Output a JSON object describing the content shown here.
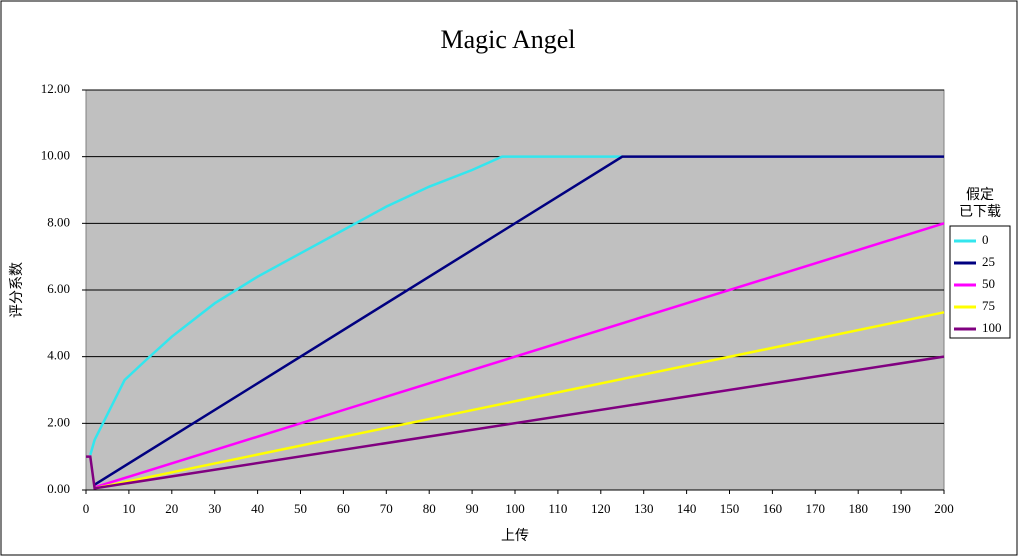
{
  "chart_data": {
    "type": "line",
    "title": "Magic Angel",
    "x_label": "上传",
    "y_label": "评分系数",
    "legend_title": [
      "假定",
      "已下载"
    ],
    "legend_position": "right",
    "grid": true,
    "xlim": [
      0,
      200
    ],
    "xticks": [
      0,
      10,
      20,
      30,
      40,
      50,
      60,
      70,
      80,
      90,
      100,
      110,
      120,
      130,
      140,
      150,
      160,
      170,
      180,
      190,
      200
    ],
    "ylim": [
      0,
      12
    ],
    "yticks": [
      {
        "value": 0,
        "label": "0.00"
      },
      {
        "value": 2,
        "label": "2.00"
      },
      {
        "value": 4,
        "label": "4.00"
      },
      {
        "value": 6,
        "label": "6.00"
      },
      {
        "value": 8,
        "label": "8.00"
      },
      {
        "value": 10,
        "label": "10.00"
      },
      {
        "value": 12,
        "label": "12.00"
      }
    ],
    "series": [
      {
        "name": "0",
        "color": "#33e6ee",
        "x": [
          1,
          2,
          9,
          14,
          20,
          30,
          40,
          50,
          60,
          70,
          80,
          90,
          97,
          125
        ],
        "values": [
          1.05,
          1.5,
          3.3,
          3.9,
          4.6,
          5.6,
          6.4,
          7.1,
          7.8,
          8.5,
          9.1,
          9.6,
          10,
          10
        ]
      },
      {
        "name": "25",
        "color": "#000080",
        "x": [
          2,
          125,
          200
        ],
        "values": [
          0.16,
          10,
          10
        ]
      },
      {
        "name": "50",
        "color": "#ff00ff",
        "x": [
          2,
          200
        ],
        "values": [
          0.08,
          8
        ]
      },
      {
        "name": "75",
        "color": "#ffff00",
        "x": [
          2,
          200
        ],
        "values": [
          0.05,
          5.33
        ]
      },
      {
        "name": "100",
        "color": "#800080",
        "x": [
          0,
          1,
          2,
          200
        ],
        "values": [
          1,
          1,
          0.05,
          4
        ]
      }
    ]
  }
}
